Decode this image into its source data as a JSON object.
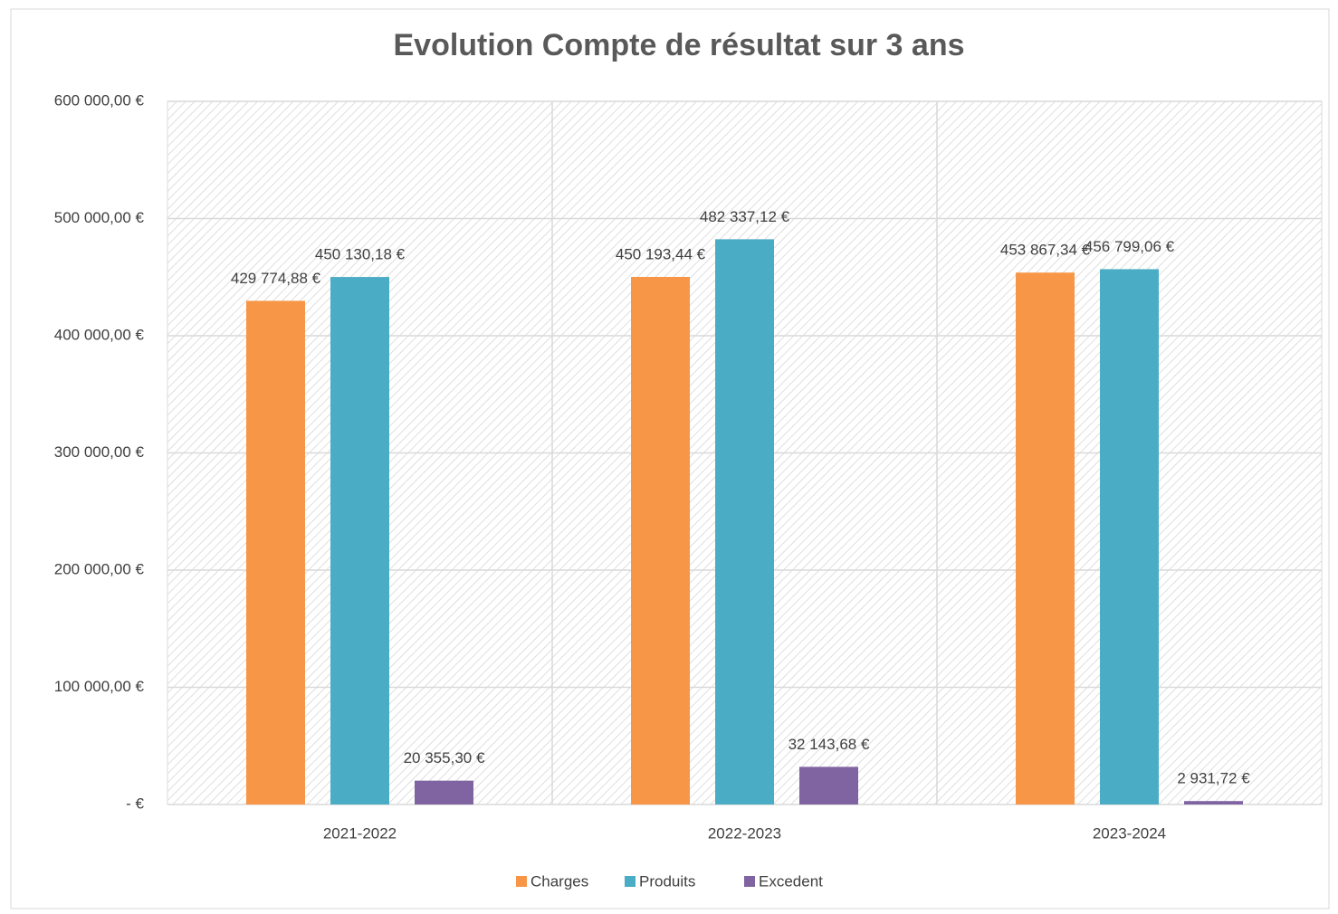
{
  "chart_data": {
    "type": "bar",
    "title": "Evolution Compte de résultat sur 3 ans",
    "categories": [
      "2021-2022",
      "2022-2023",
      "2023-2024"
    ],
    "series": [
      {
        "name": "Charges",
        "color": "#f79646",
        "values": [
          429774.88,
          450193.44,
          453867.34
        ],
        "value_labels": [
          "429 774,88 €",
          "450 193,44 €",
          "453 867,34 €"
        ]
      },
      {
        "name": "Produits",
        "color": "#4bacc6",
        "values": [
          450130.18,
          482337.12,
          456799.06
        ],
        "value_labels": [
          "450 130,18  €",
          "482 337,12  €",
          "456 799,06  €"
        ]
      },
      {
        "name": "Excedent",
        "color": "#8064a2",
        "values": [
          20355.3,
          32143.68,
          2931.72
        ],
        "value_labels": [
          "20 355,30  €",
          "32 143,68  €",
          "2 931,72  €"
        ]
      }
    ],
    "ylim": [
      0,
      600000
    ],
    "yticks": [
      {
        "value": 0,
        "label": "-  €"
      },
      {
        "value": 100000,
        "label": "100 000,00 €"
      },
      {
        "value": 200000,
        "label": "200 000,00 €"
      },
      {
        "value": 300000,
        "label": "300 000,00 €"
      },
      {
        "value": 400000,
        "label": "400 000,00 €"
      },
      {
        "value": 500000,
        "label": "500 000,00 €"
      },
      {
        "value": 600000,
        "label": "600 000,00 €"
      }
    ],
    "grid": true,
    "legend": "bottom"
  }
}
